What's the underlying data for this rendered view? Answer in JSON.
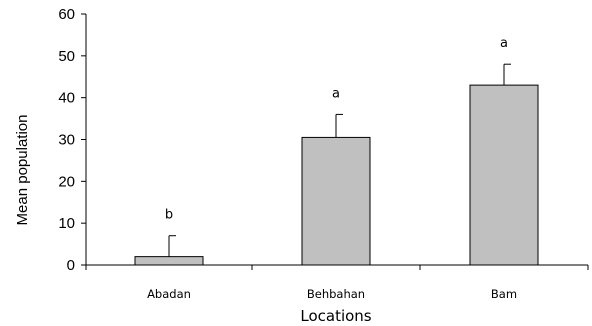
{
  "chart_data": {
    "type": "bar",
    "categories": [
      "Abadan",
      "Behbahan",
      "Bam"
    ],
    "values": [
      2,
      30.5,
      43
    ],
    "error_upper": [
      7,
      36,
      48
    ],
    "annotations": [
      "b",
      "a",
      "a"
    ],
    "xlabel": "Locations",
    "ylabel": "Mean population",
    "ylim": [
      0,
      60
    ],
    "yticks": [
      0,
      10,
      20,
      30,
      40,
      50,
      60
    ],
    "grid": false,
    "bar_color": "#c0c0c0",
    "bar_edge_color": "#000000"
  }
}
